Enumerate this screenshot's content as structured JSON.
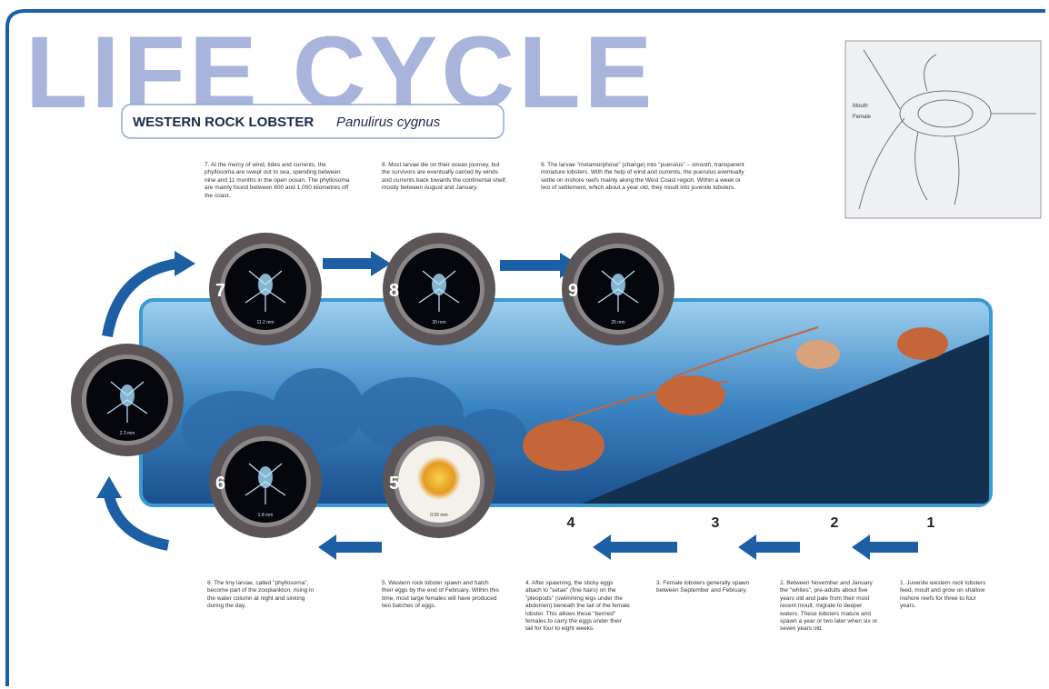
{
  "title": "LIFE CYCLE",
  "subtitle": {
    "common": "WESTERN ROCK LOBSTER",
    "scientific": "Panulirus cygnus"
  },
  "inset": {
    "labels": [
      "Mouth",
      "Female"
    ]
  },
  "larva_scale": "2.3 mm",
  "stages": [
    {
      "number": "1",
      "text": "1. Juvenile western rock lobsters feed, moult and grow on shallow inshore reefs for three to four years."
    },
    {
      "number": "2",
      "text": "2. Between November and January the \"whites\", pre-adults about five years old and pale from their most recent moult, migrate to deeper waters. These lobsters mature and spawn a year or two later when six or seven years old."
    },
    {
      "number": "3",
      "text": "3. Female lobsters generally spawn between September and February."
    },
    {
      "number": "4",
      "text": "4. After spawning, the sticky eggs attach to \"setae\" (fine hairs) on the \"pleopods\" (swimming legs under the abdomen) beneath the tail of the female lobster. This allows these \"berried\" females to carry the eggs under their tail for four to eight weeks."
    },
    {
      "number": "5",
      "scale": "0.55 mm",
      "text": "5. Western rock lobster spawn and hatch their eggs by the end of February. Within this time, most large females will have produced two batches of eggs."
    },
    {
      "number": "6",
      "scale": "1.8 mm",
      "text": "6. The tiny larvae, called \"phyllosoma\", become part of the zooplankton, rising in the water column at night and sinking during the day."
    },
    {
      "number": "7",
      "scale": "11.2 mm",
      "text": "7. At the mercy of wind, tides and currents, the phyllosoma are swept out to sea, spending between nine and 11 months in the open ocean. The phyllosoma are mainly found between 600 and 1,000 kilometres off the coast."
    },
    {
      "number": "8",
      "scale": "30 mm",
      "text": "8. Most larvae die on their ocean journey, but the survivors are eventually carried by winds and currents back towards the continental shelf, mostly between August and January."
    },
    {
      "number": "9",
      "scale": "25 mm",
      "text": "9. The larvae \"metamorphose\" (change) into \"puerulus\" – smooth, transparent miniature lobsters. With the help of wind and currents, the puerulus eventually settle on inshore reefs mainly along the West Coast region. Within a week or two of settlement, which about a year old, they moult into juvenile lobsters."
    }
  ]
}
